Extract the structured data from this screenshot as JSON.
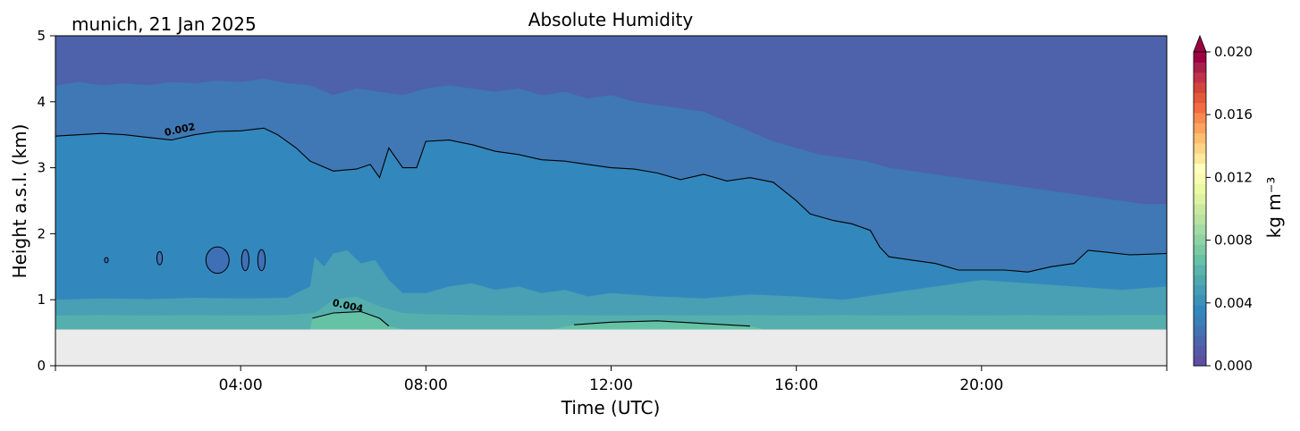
{
  "chart_data": {
    "type": "heatmap",
    "title": "Absolute Humidity",
    "subtitle": "munich, 21 Jan 2025",
    "xlabel": "Time (UTC)",
    "ylabel": "Height a.s.l. (km)",
    "xlim_hours": [
      0,
      24
    ],
    "ylim": [
      0,
      5
    ],
    "x_ticks": [
      {
        "hour": 4,
        "label": "04:00"
      },
      {
        "hour": 8,
        "label": "08:00"
      },
      {
        "hour": 12,
        "label": "12:00"
      },
      {
        "hour": 16,
        "label": "16:00"
      },
      {
        "hour": 20,
        "label": "20:00"
      }
    ],
    "y_ticks": [
      {
        "value": 0,
        "label": "0"
      },
      {
        "value": 1,
        "label": "1"
      },
      {
        "value": 2,
        "label": "2"
      },
      {
        "value": 3,
        "label": "3"
      },
      {
        "value": 4,
        "label": "4"
      },
      {
        "value": 5,
        "label": "5"
      }
    ],
    "data_bottom_km": 0.55,
    "no_data_color": "#ebebeb",
    "colorbar": {
      "label": "kg m⁻³",
      "range": [
        0.0,
        0.02
      ],
      "extend": "max",
      "ticks": [
        {
          "value": 0.0,
          "label": "0.000"
        },
        {
          "value": 0.004,
          "label": "0.004"
        },
        {
          "value": 0.008,
          "label": "0.008"
        },
        {
          "value": 0.012,
          "label": "0.012"
        },
        {
          "value": 0.016,
          "label": "0.016"
        },
        {
          "value": 0.02,
          "label": "0.020"
        }
      ],
      "colors": [
        "#5e4fa2",
        "#555aa7",
        "#4b66ad",
        "#4273b3",
        "#3a7fb8",
        "#3288bd",
        "#3b92b9",
        "#459db4",
        "#4fa8ae",
        "#5ab4ab",
        "#66c2a5",
        "#7acaa4",
        "#8fd2a4",
        "#a4daa4",
        "#b7e2a2",
        "#cbe99e",
        "#def2a0",
        "#edf8a4",
        "#f8fbb0",
        "#fefebd"
      ],
      "colors_upper": [
        "#fee999",
        "#fdd485",
        "#fdbe70",
        "#fca35f",
        "#f88a50",
        "#f26c43",
        "#e35839",
        "#d3443a",
        "#c0324b",
        "#a8204a",
        "#9e0142"
      ]
    },
    "bands": [
      {
        "level": 0.003,
        "color": "#66c2a5",
        "top": [
          [
            0,
            0.55
          ],
          [
            5.5,
            0.55
          ],
          [
            5.55,
            0.72
          ],
          [
            6,
            0.8
          ],
          [
            6.6,
            0.82
          ],
          [
            7,
            0.72
          ],
          [
            7.2,
            0.6
          ],
          [
            7.5,
            0.55
          ],
          [
            10.7,
            0.55
          ],
          [
            11.2,
            0.62
          ],
          [
            12,
            0.66
          ],
          [
            13,
            0.68
          ],
          [
            14,
            0.64
          ],
          [
            15,
            0.6
          ],
          [
            15.3,
            0.55
          ],
          [
            24,
            0.55
          ]
        ]
      },
      {
        "level": 0.0028,
        "color": "#55afad",
        "top": [
          [
            0,
            0.76
          ],
          [
            1,
            0.77
          ],
          [
            2,
            0.76
          ],
          [
            3,
            0.77
          ],
          [
            4,
            0.76
          ],
          [
            5,
            0.77
          ],
          [
            5.6,
            0.8
          ],
          [
            6,
            1.0
          ],
          [
            6.5,
            1.05
          ],
          [
            7,
            0.9
          ],
          [
            7.5,
            0.8
          ],
          [
            8,
            0.78
          ],
          [
            9,
            0.77
          ],
          [
            10,
            0.76
          ],
          [
            11,
            0.77
          ],
          [
            12,
            0.76
          ],
          [
            13,
            0.77
          ],
          [
            14,
            0.76
          ],
          [
            15,
            0.77
          ],
          [
            16,
            0.76
          ],
          [
            17,
            0.77
          ],
          [
            18,
            0.76
          ],
          [
            19,
            0.77
          ],
          [
            20,
            0.76
          ],
          [
            21,
            0.77
          ],
          [
            22,
            0.76
          ],
          [
            23,
            0.77
          ],
          [
            24,
            0.77
          ]
        ]
      },
      {
        "level": 0.0024,
        "color": "#499fb3",
        "top": [
          [
            0,
            1.0
          ],
          [
            1,
            1.02
          ],
          [
            2,
            1.01
          ],
          [
            3,
            1.03
          ],
          [
            4,
            1.02
          ],
          [
            5,
            1.03
          ],
          [
            5.5,
            1.2
          ],
          [
            5.6,
            1.65
          ],
          [
            5.8,
            1.5
          ],
          [
            6,
            1.7
          ],
          [
            6.3,
            1.75
          ],
          [
            6.6,
            1.55
          ],
          [
            6.9,
            1.6
          ],
          [
            7.2,
            1.3
          ],
          [
            7.5,
            1.1
          ],
          [
            8,
            1.1
          ],
          [
            8.5,
            1.2
          ],
          [
            9,
            1.25
          ],
          [
            9.5,
            1.15
          ],
          [
            10,
            1.2
          ],
          [
            10.5,
            1.1
          ],
          [
            11,
            1.15
          ],
          [
            11.5,
            1.05
          ],
          [
            12,
            1.1
          ],
          [
            13,
            1.05
          ],
          [
            14,
            1.02
          ],
          [
            15,
            1.08
          ],
          [
            16,
            1.05
          ],
          [
            17,
            1.0
          ],
          [
            18,
            1.1
          ],
          [
            19,
            1.2
          ],
          [
            20,
            1.3
          ],
          [
            21,
            1.25
          ],
          [
            22,
            1.2
          ],
          [
            23,
            1.15
          ],
          [
            24,
            1.2
          ]
        ]
      },
      {
        "level": 0.002,
        "color": "#3288bd",
        "top": [
          [
            0,
            3.48
          ],
          [
            0.5,
            3.5
          ],
          [
            1,
            3.52
          ],
          [
            1.5,
            3.5
          ],
          [
            2,
            3.46
          ],
          [
            2.5,
            3.42
          ],
          [
            3,
            3.5
          ],
          [
            3.5,
            3.55
          ],
          [
            4,
            3.56
          ],
          [
            4.5,
            3.6
          ],
          [
            4.8,
            3.5
          ],
          [
            5.2,
            3.3
          ],
          [
            5.5,
            3.1
          ],
          [
            6,
            2.95
          ],
          [
            6.5,
            2.98
          ],
          [
            6.8,
            3.05
          ],
          [
            7,
            2.85
          ],
          [
            7.2,
            3.3
          ],
          [
            7.5,
            3.0
          ],
          [
            7.8,
            3.0
          ],
          [
            8,
            3.4
          ],
          [
            8.5,
            3.42
          ],
          [
            9,
            3.35
          ],
          [
            9.5,
            3.25
          ],
          [
            10,
            3.2
          ],
          [
            10.5,
            3.12
          ],
          [
            11,
            3.1
          ],
          [
            11.5,
            3.05
          ],
          [
            12,
            3.0
          ],
          [
            12.5,
            2.98
          ],
          [
            13,
            2.92
          ],
          [
            13.5,
            2.82
          ],
          [
            14,
            2.9
          ],
          [
            14.5,
            2.8
          ],
          [
            15,
            2.85
          ],
          [
            15.5,
            2.78
          ],
          [
            16,
            2.5
          ],
          [
            16.3,
            2.3
          ],
          [
            16.8,
            2.2
          ],
          [
            17.2,
            2.15
          ],
          [
            17.6,
            2.05
          ],
          [
            17.8,
            1.8
          ],
          [
            18,
            1.65
          ],
          [
            18.5,
            1.6
          ],
          [
            19,
            1.55
          ],
          [
            19.5,
            1.45
          ],
          [
            20,
            1.45
          ],
          [
            20.5,
            1.45
          ],
          [
            21,
            1.42
          ],
          [
            21.5,
            1.5
          ],
          [
            22,
            1.55
          ],
          [
            22.3,
            1.75
          ],
          [
            22.7,
            1.72
          ],
          [
            23.2,
            1.68
          ],
          [
            24,
            1.7
          ]
        ]
      },
      {
        "level": 0.0016,
        "color": "#3f78b4",
        "top": [
          [
            0,
            4.25
          ],
          [
            0.5,
            4.3
          ],
          [
            1,
            4.25
          ],
          [
            1.5,
            4.28
          ],
          [
            2,
            4.25
          ],
          [
            2.5,
            4.3
          ],
          [
            3,
            4.28
          ],
          [
            3.5,
            4.32
          ],
          [
            4,
            4.3
          ],
          [
            4.5,
            4.35
          ],
          [
            5,
            4.28
          ],
          [
            5.5,
            4.25
          ],
          [
            6,
            4.1
          ],
          [
            6.5,
            4.2
          ],
          [
            7,
            4.15
          ],
          [
            7.5,
            4.1
          ],
          [
            8,
            4.2
          ],
          [
            8.5,
            4.25
          ],
          [
            9,
            4.2
          ],
          [
            9.5,
            4.15
          ],
          [
            10,
            4.2
          ],
          [
            10.5,
            4.1
          ],
          [
            11,
            4.15
          ],
          [
            11.5,
            4.05
          ],
          [
            12,
            4.1
          ],
          [
            12.5,
            4.0
          ],
          [
            13,
            3.95
          ],
          [
            13.5,
            3.9
          ],
          [
            14,
            3.85
          ],
          [
            14.5,
            3.7
          ],
          [
            15,
            3.55
          ],
          [
            15.5,
            3.4
          ],
          [
            16,
            3.3
          ],
          [
            16.5,
            3.2
          ],
          [
            17,
            3.15
          ],
          [
            17.5,
            3.1
          ],
          [
            18,
            3.0
          ],
          [
            18.5,
            2.95
          ],
          [
            19,
            2.9
          ],
          [
            19.5,
            2.85
          ],
          [
            20,
            2.8
          ],
          [
            20.5,
            2.75
          ],
          [
            21,
            2.7
          ],
          [
            21.5,
            2.65
          ],
          [
            22,
            2.6
          ],
          [
            22.5,
            2.55
          ],
          [
            23,
            2.5
          ],
          [
            23.5,
            2.45
          ],
          [
            24,
            2.45
          ]
        ]
      },
      {
        "level": 0.0012,
        "color": "#4d62ab",
        "top": [
          [
            0,
            5
          ],
          [
            24,
            5
          ]
        ]
      },
      {
        "level": 0.0008,
        "color": "#5a53a3",
        "top": [
          [
            0,
            5
          ],
          [
            16,
            5
          ],
          [
            16.5,
            4.9
          ],
          [
            17,
            4.85
          ],
          [
            17.5,
            4.8
          ],
          [
            18,
            4.75
          ],
          [
            18.5,
            4.7
          ],
          [
            19,
            4.6
          ],
          [
            19.5,
            4.5
          ],
          [
            20,
            4.3
          ],
          [
            20.5,
            4.2
          ],
          [
            21,
            4.1
          ],
          [
            21.5,
            4.0
          ],
          [
            22,
            3.95
          ],
          [
            22.5,
            3.85
          ],
          [
            23,
            3.8
          ],
          [
            23.5,
            3.7
          ],
          [
            24,
            3.65
          ]
        ]
      }
    ],
    "contours": [
      {
        "level": 0.002,
        "label": "0.002",
        "label_at": [
          2.7,
          3.53
        ]
      },
      {
        "level": 0.004,
        "label": "0.004",
        "label_at": [
          6.3,
          0.86
        ]
      }
    ],
    "pockets": [
      {
        "center": [
          1.1,
          1.6
        ],
        "rx": 0.04,
        "ry": 0.04
      },
      {
        "center": [
          2.25,
          1.63
        ],
        "rx": 0.06,
        "ry": 0.1
      },
      {
        "center": [
          3.5,
          1.6
        ],
        "rx": 0.25,
        "ry": 0.2
      },
      {
        "center": [
          4.1,
          1.6
        ],
        "rx": 0.08,
        "ry": 0.16
      },
      {
        "center": [
          4.45,
          1.6
        ],
        "rx": 0.08,
        "ry": 0.16
      }
    ]
  }
}
